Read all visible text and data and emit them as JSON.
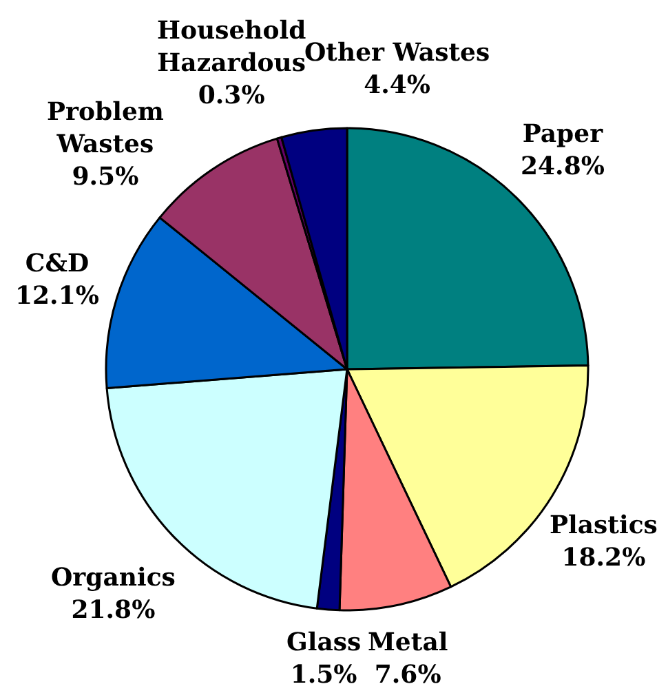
{
  "chart_data": {
    "type": "pie",
    "categories": [
      "Paper",
      "Plastics",
      "Metal",
      "Glass",
      "Organics",
      "C&D",
      "Problem\nWastes",
      "Household\nHazardous",
      "Other Wastes"
    ],
    "values": [
      24.8,
      18.2,
      7.6,
      1.5,
      21.8,
      12.1,
      9.5,
      0.3,
      4.4
    ],
    "value_labels": [
      "24.8%",
      "18.2%",
      "7.6%",
      "1.5%",
      "21.8%",
      "12.1%",
      "9.5%",
      "0.3%",
      "4.4%"
    ],
    "colors": [
      "#008080",
      "#ffff99",
      "#ff8080",
      "#000080",
      "#ccffff",
      "#0066cc",
      "#993366",
      "#660066",
      "#000080"
    ]
  }
}
